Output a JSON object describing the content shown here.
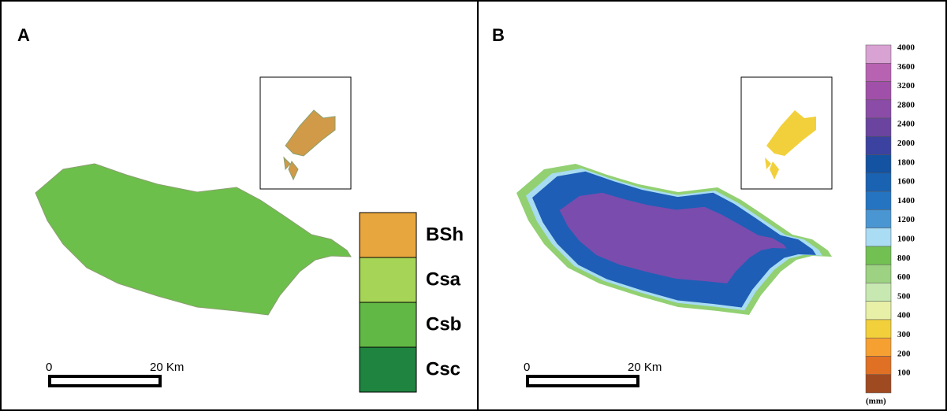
{
  "panel_a": {
    "label": "A",
    "legend": [
      {
        "label": "BSh",
        "color": "#e8a63e"
      },
      {
        "label": "Csa",
        "color": "#a6d456"
      },
      {
        "label": "Csb",
        "color": "#62b845"
      },
      {
        "label": "Csc",
        "color": "#1f8440"
      }
    ],
    "scale_bar": {
      "start": "0",
      "end": "20 Km"
    }
  },
  "panel_b": {
    "label": "B",
    "colorbar": {
      "ticks": [
        4000,
        3600,
        3200,
        2800,
        2400,
        2000,
        1800,
        1600,
        1400,
        1200,
        1000,
        800,
        600,
        500,
        400,
        300,
        200,
        100
      ],
      "colors": [
        "#d8a2d2",
        "#b862b2",
        "#a050a8",
        "#8a4ca6",
        "#6a449e",
        "#3c42a0",
        "#1452a2",
        "#1a62b2",
        "#2474c2",
        "#4a96d2",
        "#aadcf4",
        "#72c052",
        "#9cd282",
        "#c8e8b2",
        "#e8f0a8",
        "#f2d03c",
        "#f6a032",
        "#e07024",
        "#a04a22"
      ],
      "unit": "(mm)"
    },
    "scale_bar": {
      "start": "0",
      "end": "20 Km"
    }
  }
}
